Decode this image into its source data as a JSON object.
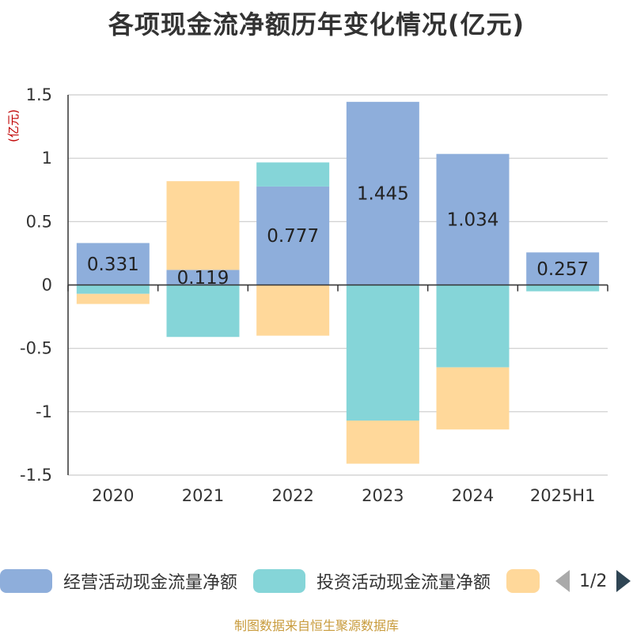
{
  "title": "各项现金流净额历年变化情况(亿元)",
  "unit_label": "(亿元)",
  "source": "制图数据来自恒生聚源数据库",
  "legend": {
    "items": [
      {
        "label": "经营活动现金流量净额",
        "color": "#8eaedb"
      },
      {
        "label": "投资活动现金流量净额",
        "color": "#85d5d8"
      },
      {
        "label": "",
        "color": "#ffd89a"
      }
    ],
    "page_text": "1/2"
  },
  "chart_data": {
    "type": "bar",
    "stacked": true,
    "categories": [
      "2020",
      "2021",
      "2022",
      "2023",
      "2024",
      "2025H1"
    ],
    "series": [
      {
        "name": "经营活动现金流量净额",
        "color": "#8eaedb",
        "values": [
          0.331,
          0.119,
          0.777,
          1.445,
          1.034,
          0.257
        ],
        "labels_shown": true
      },
      {
        "name": "投资活动现金流量净额",
        "color": "#85d5d8",
        "values": [
          -0.07,
          -0.41,
          0.19,
          -1.07,
          -0.65,
          -0.05
        ],
        "labels_shown": false
      },
      {
        "name": "",
        "color": "#ffd89a",
        "values": [
          -0.08,
          0.7,
          -0.4,
          -0.34,
          -0.49,
          0
        ],
        "labels_shown": false
      }
    ],
    "ylim": [
      -1.5,
      1.5
    ],
    "yticks": [
      -1.5,
      -1,
      -0.5,
      0,
      0.5,
      1,
      1.5
    ],
    "ytick_labels": [
      "-1.5",
      "-1",
      "-0.5",
      "0",
      "0.5",
      "1",
      "1.5"
    ],
    "grid": true
  }
}
